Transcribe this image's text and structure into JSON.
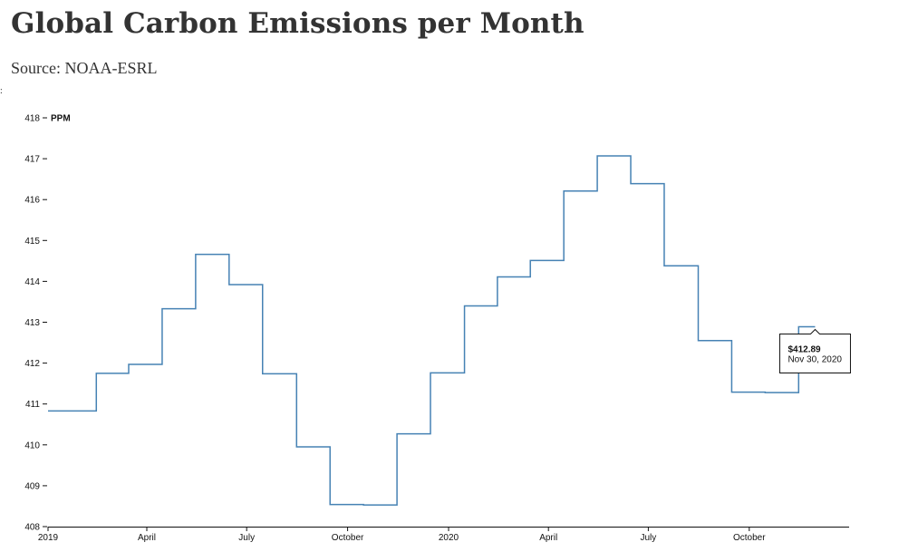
{
  "header": {
    "title": "Global Carbon Emissions per Month",
    "source": "Source: NOAA-ESRL"
  },
  "left_mark": ":",
  "colors": {
    "line": "#4682b4",
    "axis": "#111111",
    "title": "#333333",
    "tooltip_border": "#111111",
    "tooltip_fill": "#ffffff"
  },
  "tooltip": {
    "value": "$412.89",
    "date": "Nov 30, 2020"
  },
  "chart_data": {
    "type": "line",
    "curve": "step",
    "title": "Global Carbon Emissions per Month",
    "subtitle": "Source: NOAA-ESRL",
    "ylabel": "PPM",
    "xlim": [
      "2019-01-01",
      "2020-12-31"
    ],
    "ylim": [
      408,
      418
    ],
    "grid": false,
    "y_ticks": [
      408,
      409,
      410,
      411,
      412,
      413,
      414,
      415,
      416,
      417,
      418
    ],
    "x_ticks": [
      {
        "date": "2019-01-01",
        "label": "2019"
      },
      {
        "date": "2019-04-01",
        "label": "April"
      },
      {
        "date": "2019-07-01",
        "label": "July"
      },
      {
        "date": "2019-10-01",
        "label": "October"
      },
      {
        "date": "2020-01-01",
        "label": "2020"
      },
      {
        "date": "2020-04-01",
        "label": "April"
      },
      {
        "date": "2020-07-01",
        "label": "July"
      },
      {
        "date": "2020-10-01",
        "label": "October"
      }
    ],
    "series": [
      {
        "points": [
          {
            "x": "2019-01-01",
            "y": 410.83
          },
          {
            "x": "2019-01-31",
            "y": 410.83
          },
          {
            "x": "2019-02-28",
            "y": 411.75
          },
          {
            "x": "2019-03-31",
            "y": 411.97
          },
          {
            "x": "2019-04-30",
            "y": 413.33
          },
          {
            "x": "2019-05-31",
            "y": 414.66
          },
          {
            "x": "2019-06-30",
            "y": 413.92
          },
          {
            "x": "2019-07-31",
            "y": 411.74
          },
          {
            "x": "2019-08-31",
            "y": 409.95
          },
          {
            "x": "2019-09-30",
            "y": 408.54
          },
          {
            "x": "2019-10-31",
            "y": 408.53
          },
          {
            "x": "2019-11-30",
            "y": 410.27
          },
          {
            "x": "2019-12-31",
            "y": 411.76
          },
          {
            "x": "2020-01-31",
            "y": 413.4
          },
          {
            "x": "2020-02-29",
            "y": 414.11
          },
          {
            "x": "2020-03-31",
            "y": 414.51
          },
          {
            "x": "2020-04-30",
            "y": 416.21
          },
          {
            "x": "2020-05-31",
            "y": 417.07
          },
          {
            "x": "2020-06-30",
            "y": 416.39
          },
          {
            "x": "2020-07-31",
            "y": 414.38
          },
          {
            "x": "2020-08-31",
            "y": 412.55
          },
          {
            "x": "2020-09-30",
            "y": 411.29
          },
          {
            "x": "2020-10-31",
            "y": 411.28
          },
          {
            "x": "2020-11-30",
            "y": 412.89
          }
        ]
      }
    ],
    "highlight": {
      "x": "2020-11-30",
      "y": 412.89
    }
  }
}
